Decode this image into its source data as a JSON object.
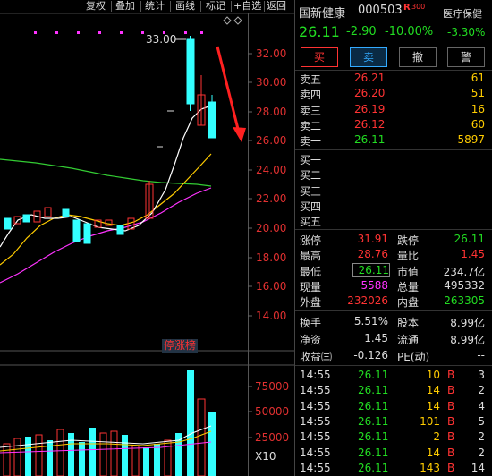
{
  "toolbar": {
    "items": [
      "复权",
      "叠加",
      "统计",
      "画线",
      "标记",
      "+自选",
      "返回"
    ]
  },
  "chart": {
    "price_axis": [
      "32.00",
      "30.00",
      "28.00",
      "26.00",
      "24.00",
      "22.00",
      "20.00",
      "18.00",
      "16.00",
      "14.00"
    ],
    "high_label": "33.00",
    "tag_label": "停涨榜",
    "volume_axis": [
      "75000",
      "50000",
      "25000"
    ],
    "multiplier": "X10",
    "colors": {
      "up": "#ff3333",
      "down": "#33ffff",
      "ma5": "#ffffff",
      "ma10": "#ffcc00",
      "ma20": "#ff33ff",
      "ma60": "#33cc33",
      "arrow": "#ff2020"
    }
  },
  "header": {
    "name": "国新健康",
    "code": "000503",
    "badge": "R",
    "badge_num": "300",
    "sector": "医疗保健",
    "price": "26.11",
    "change": "-2.90",
    "pct": "-10.00%",
    "sector_pct": "-3.30%"
  },
  "actions": {
    "buy": "买",
    "sell": "卖",
    "cancel": "撤",
    "alert": "警"
  },
  "asks": [
    {
      "label": "卖五",
      "price": "26.21",
      "vol": "61"
    },
    {
      "label": "卖四",
      "price": "26.20",
      "vol": "51"
    },
    {
      "label": "卖三",
      "price": "26.19",
      "vol": "16"
    },
    {
      "label": "卖二",
      "price": "26.12",
      "vol": "60"
    },
    {
      "label": "卖一",
      "price": "26.11",
      "vol": "5897"
    }
  ],
  "bids": [
    {
      "label": "买一"
    },
    {
      "label": "买二"
    },
    {
      "label": "买三"
    },
    {
      "label": "买四"
    },
    {
      "label": "买五"
    }
  ],
  "stats": [
    [
      {
        "k": "涨停",
        "v": "31.91"
      },
      {
        "k": "跌停",
        "v": "26.11"
      }
    ],
    [
      {
        "k": "最高",
        "v": "28.76"
      },
      {
        "k": "量比",
        "v": "1.45"
      }
    ],
    [
      {
        "k": "最低",
        "v": "26.11"
      },
      {
        "k": "市值",
        "v": "234.7亿"
      }
    ],
    [
      {
        "k": "现量",
        "v": "5588"
      },
      {
        "k": "总量",
        "v": "495332"
      }
    ],
    [
      {
        "k": "外盘",
        "v": "232026"
      },
      {
        "k": "内盘",
        "v": "263305"
      }
    ]
  ],
  "stats2": [
    [
      {
        "k": "换手",
        "v": "5.51%"
      },
      {
        "k": "股本",
        "v": "8.99亿"
      }
    ],
    [
      {
        "k": "净资",
        "v": "1.45"
      },
      {
        "k": "流通",
        "v": "8.99亿"
      }
    ],
    [
      {
        "k": "收益㈢",
        "v": "-0.126"
      },
      {
        "k": "PE(动)",
        "v": "--"
      }
    ]
  ],
  "trades": [
    {
      "time": "14:55",
      "price": "26.11",
      "vol": "10",
      "side": "B",
      "n": "3"
    },
    {
      "time": "14:55",
      "price": "26.11",
      "vol": "14",
      "side": "B",
      "n": "2"
    },
    {
      "time": "14:55",
      "price": "26.11",
      "vol": "14",
      "side": "B",
      "n": "4"
    },
    {
      "time": "14:55",
      "price": "26.11",
      "vol": "101",
      "side": "B",
      "n": "5"
    },
    {
      "time": "14:55",
      "price": "26.11",
      "vol": "2",
      "side": "B",
      "n": "2"
    },
    {
      "time": "14:55",
      "price": "26.11",
      "vol": "14",
      "side": "B",
      "n": "2"
    },
    {
      "time": "14:55",
      "price": "26.11",
      "vol": "143",
      "side": "B",
      "n": "14"
    }
  ]
}
